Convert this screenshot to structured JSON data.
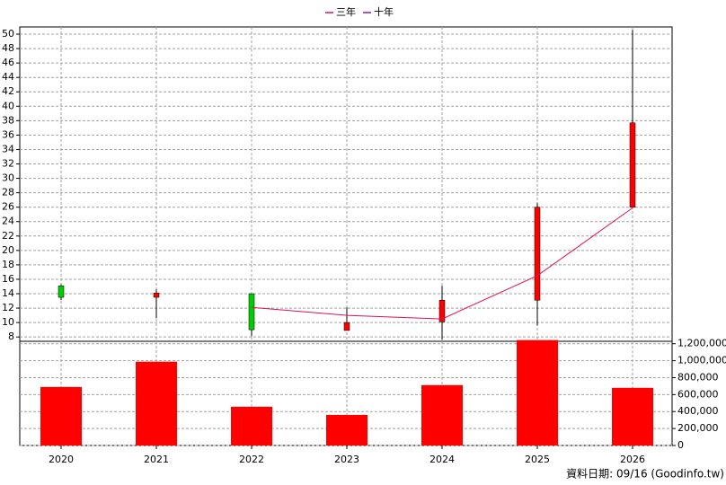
{
  "chart_data": {
    "type": "candlestick",
    "categories": [
      "2020",
      "2021",
      "2022",
      "2023",
      "2024",
      "2025",
      "2026"
    ],
    "open": [
      15.1,
      13.5,
      14.0,
      8.9,
      10.1,
      13.1,
      26.0
    ],
    "high": [
      15.3,
      14.6,
      14.0,
      12.1,
      15.1,
      26.6,
      50.6
    ],
    "low": [
      13.1,
      10.6,
      8.1,
      8.9,
      7.6,
      9.6,
      26.0
    ],
    "close": [
      13.5,
      14.1,
      9.0,
      10.0,
      13.1,
      26.0,
      37.7
    ],
    "up_color": "#ff0000",
    "down_color": "#00cc00",
    "lines": [
      {
        "name": "三年",
        "color": "#e0105a",
        "values": [
          null,
          null,
          12.1,
          11.0,
          10.5,
          16.5,
          25.9
        ]
      },
      {
        "name": "十年",
        "color": "#7a1fc0",
        "values": [
          null,
          null,
          null,
          null,
          null,
          null,
          null
        ]
      }
    ],
    "ylim": [
      7.4,
      51
    ],
    "yticks": [
      8,
      10,
      12,
      14,
      16,
      18,
      20,
      22,
      24,
      26,
      28,
      30,
      32,
      34,
      36,
      38,
      40,
      42,
      44,
      46,
      48,
      50
    ],
    "volume": {
      "color": "#ff0000",
      "values": [
        690000,
        988000,
        457000,
        361000,
        712000,
        1243000,
        680000
      ],
      "y2lim": [
        0,
        1250000
      ],
      "y2ticks": [
        0,
        {
          "value": 200000,
          "label": "200,000"
        },
        {
          "value": 400000,
          "label": "400,000"
        },
        {
          "value": 600000,
          "label": "600,000"
        },
        {
          "value": 800000,
          "label": "800,000"
        },
        {
          "value": 1000000,
          "label": "1,000,000"
        },
        {
          "value": 1200000,
          "label": "1,200,000"
        }
      ]
    },
    "grid": true,
    "footer": "資料日期: 09/16  (Goodinfo.tw)"
  }
}
